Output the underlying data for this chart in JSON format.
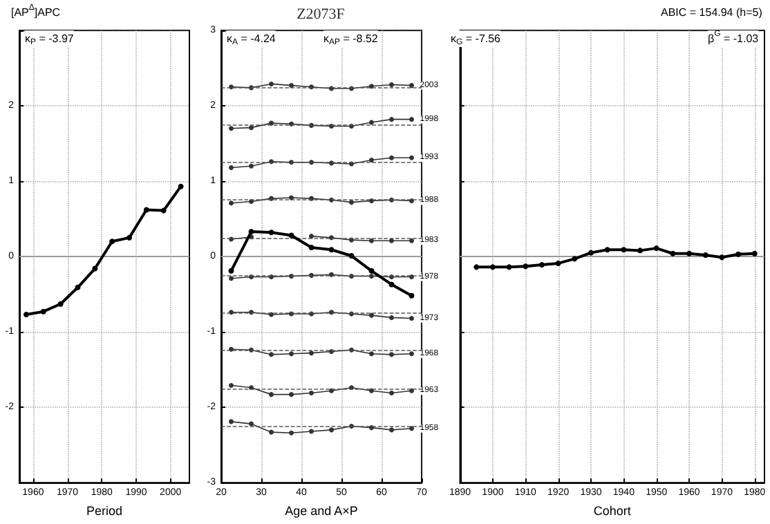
{
  "chart_data": [
    {
      "type": "line",
      "xlabel": "Period",
      "annotations": [
        "[AP$^{Δ}$]APC",
        "κ$_{P}$ = -3.97"
      ],
      "x": [
        1958,
        1963,
        1968,
        1973,
        1978,
        1983,
        1988,
        1993,
        1998,
        2003
      ],
      "series": [
        {
          "color": "#000000",
          "values": [
            -0.77,
            -0.73,
            -0.63,
            -0.41,
            -0.16,
            0.2,
            0.25,
            0.62,
            0.61,
            0.93
          ]
        }
      ],
      "xlim": [
        1956,
        2005.5
      ],
      "xticks": [
        1960,
        1970,
        1980,
        1990,
        2000
      ],
      "ylim": [
        -3,
        3
      ],
      "yticks": [
        {
          "value": -3,
          "label": null
        },
        -2,
        -1,
        0,
        1,
        2,
        {
          "value": 3,
          "label": null
        }
      ],
      "ref_lines": [
        {
          "axis": "y",
          "value": 0,
          "color": "#999999",
          "line_style": "solid"
        }
      ],
      "grid": true,
      "marker": "circle",
      "line_style": "solid",
      "legend": false
    },
    {
      "type": "line",
      "title": "Z2073F",
      "xlabel": "Age and A×P",
      "annotations": [
        "κ$_{A}$ = -4.24",
        "κ$_{AP}$ = -8.52"
      ],
      "x": [
        22.5,
        27.5,
        32.5,
        37.5,
        42.5,
        47.5,
        52.5,
        57.5,
        62.5,
        67.5
      ],
      "series": [
        {
          "color": "#000000",
          "values": [
            -0.19,
            0.33,
            0.32,
            0.28,
            0.12,
            0.09,
            0.01,
            -0.19,
            -0.37,
            -0.52
          ]
        },
        {
          "name": "2003",
          "color": "#333333",
          "values": [
            2.25,
            2.24,
            2.29,
            2.27,
            2.25,
            2.23,
            2.23,
            2.26,
            2.28,
            2.27
          ]
        },
        {
          "name": "1998",
          "color": "#333333",
          "values": [
            1.7,
            1.71,
            1.77,
            1.76,
            1.74,
            1.73,
            1.73,
            1.78,
            1.82,
            1.82
          ]
        },
        {
          "name": "1993",
          "color": "#333333",
          "values": [
            1.18,
            1.2,
            1.26,
            1.25,
            1.25,
            1.24,
            1.23,
            1.28,
            1.31,
            1.31
          ]
        },
        {
          "name": "1988",
          "color": "#333333",
          "values": [
            0.71,
            0.73,
            0.77,
            0.78,
            0.77,
            0.75,
            0.72,
            0.74,
            0.75,
            0.74
          ]
        },
        {
          "name": "1983",
          "color": "#333333",
          "values": [
            0.23,
            0.26,
            null,
            null,
            0.27,
            0.25,
            0.22,
            0.21,
            0.21,
            0.21
          ]
        },
        {
          "name": "1978",
          "color": "#333333",
          "values": [
            -0.29,
            -0.27,
            -0.27,
            -0.26,
            -0.25,
            -0.24,
            -0.26,
            -0.26,
            -0.27,
            -0.27
          ]
        },
        {
          "name": "1973",
          "color": "#333333",
          "values": [
            -0.74,
            -0.74,
            -0.77,
            -0.76,
            -0.76,
            -0.74,
            -0.76,
            -0.78,
            -0.81,
            -0.82
          ]
        },
        {
          "name": "1968",
          "color": "#333333",
          "values": [
            -1.23,
            -1.24,
            -1.3,
            -1.29,
            -1.28,
            -1.26,
            -1.24,
            -1.29,
            -1.3,
            -1.29
          ]
        },
        {
          "name": "1963",
          "color": "#333333",
          "values": [
            -1.71,
            -1.74,
            -1.83,
            -1.83,
            -1.81,
            -1.78,
            -1.74,
            -1.78,
            -1.81,
            -1.78
          ]
        },
        {
          "name": "1958",
          "color": "#333333",
          "values": [
            -2.19,
            -2.22,
            -2.33,
            -2.34,
            -2.32,
            -2.3,
            -2.25,
            -2.27,
            -2.3,
            -2.28
          ]
        }
      ],
      "xlim": [
        20,
        70
      ],
      "xticks": [
        20,
        30,
        40,
        50,
        60,
        70
      ],
      "ylim": [
        -3,
        3
      ],
      "yticks": [
        -3,
        -2,
        -1,
        0,
        1,
        2,
        3
      ],
      "ref_lines": [
        {
          "axis": "y",
          "value": 0,
          "color": "#999999",
          "line_style": "solid"
        },
        {
          "axis": "y",
          "value": 2.25,
          "color": "#555555",
          "line_style": "dashed"
        },
        {
          "axis": "y",
          "value": 1.75,
          "color": "#555555",
          "line_style": "dashed"
        },
        {
          "axis": "y",
          "value": 1.25,
          "color": "#555555",
          "line_style": "dashed"
        },
        {
          "axis": "y",
          "value": 0.75,
          "color": "#555555",
          "line_style": "dashed"
        },
        {
          "axis": "y",
          "value": 0.25,
          "color": "#555555",
          "line_style": "dashed"
        },
        {
          "axis": "y",
          "value": -0.25,
          "color": "#555555",
          "line_style": "dashed"
        },
        {
          "axis": "y",
          "value": -0.75,
          "color": "#555555",
          "line_style": "dashed"
        },
        {
          "axis": "y",
          "value": -1.25,
          "color": "#555555",
          "line_style": "dashed"
        },
        {
          "axis": "y",
          "value": -1.75,
          "color": "#555555",
          "line_style": "dashed"
        },
        {
          "axis": "y",
          "value": -2.25,
          "color": "#555555",
          "line_style": "dashed"
        }
      ],
      "grid": true,
      "marker": "circle",
      "line_style": "solid",
      "legend": false
    },
    {
      "type": "line",
      "xlabel": "Cohort",
      "annotations": [
        "ABIC = 154.94 (h=5)",
        "κ$_{G}$ = -7.56",
        "β$^{G}$ = -1.03"
      ],
      "x": [
        1895,
        1900,
        1905,
        1910,
        1915,
        1920,
        1925,
        1930,
        1935,
        1940,
        1945,
        1950,
        1955,
        1960,
        1965,
        1970,
        1975,
        1980
      ],
      "series": [
        {
          "color": "#000000",
          "values": [
            -0.14,
            -0.14,
            -0.14,
            -0.13,
            -0.11,
            -0.09,
            -0.03,
            0.05,
            0.09,
            0.09,
            0.08,
            0.11,
            0.04,
            0.04,
            0.02,
            -0.01,
            0.03,
            0.04
          ]
        }
      ],
      "xlim": [
        1890,
        1983
      ],
      "xticks": [
        1890,
        1900,
        1910,
        1920,
        1930,
        1940,
        1950,
        1960,
        1970,
        1980
      ],
      "ylim": [
        -3,
        3
      ],
      "yticks": [
        -3,
        -2,
        -1,
        0,
        1,
        2,
        3
      ],
      "tick_labels": "x",
      "ref_lines": [
        {
          "axis": "y",
          "value": 0,
          "color": "#999999",
          "line_style": "solid"
        }
      ],
      "grid": true,
      "marker": "circle",
      "line_style": "solid",
      "legend": false
    }
  ]
}
